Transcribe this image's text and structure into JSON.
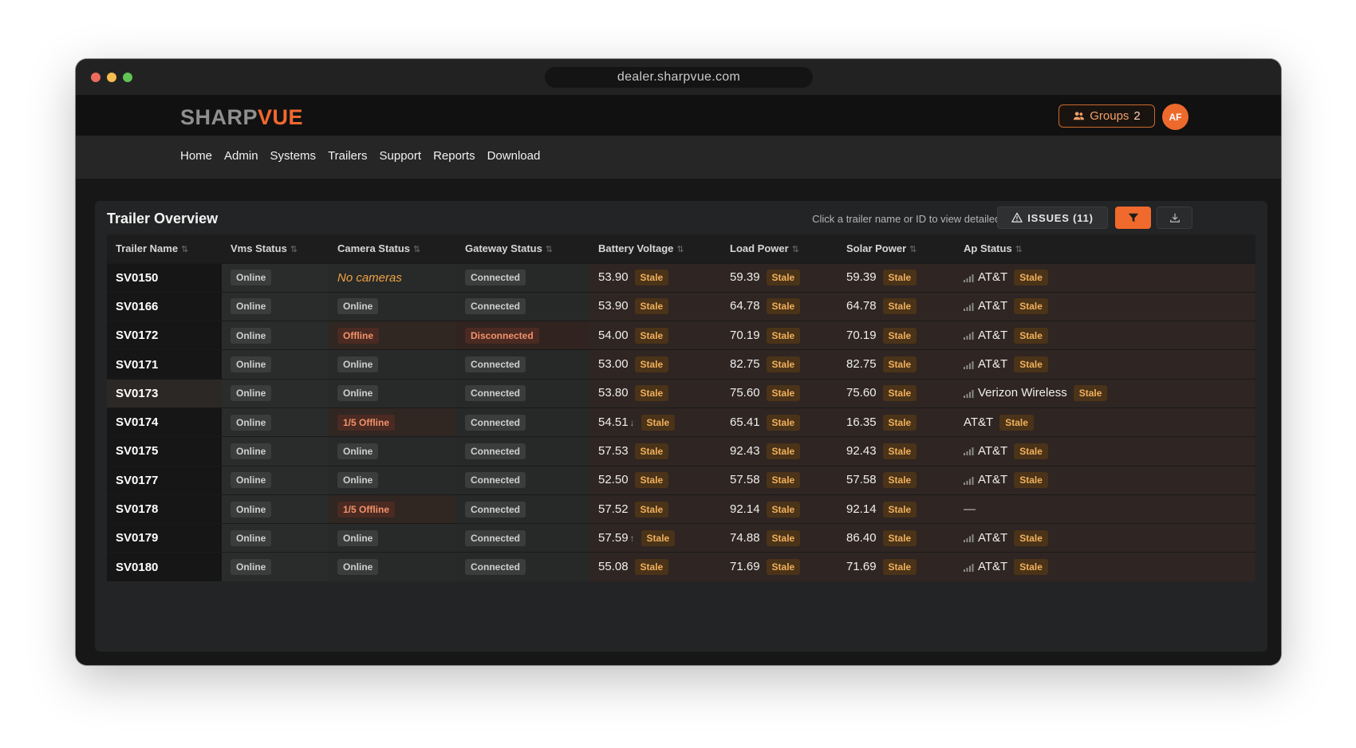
{
  "browser": {
    "url": "dealer.sharpvue.com"
  },
  "header": {
    "logo_a": "SHARP",
    "logo_b": "VUE",
    "groups_label": "Groups",
    "groups_count": "2",
    "avatar_initials": "AF"
  },
  "nav": {
    "items": [
      "Home",
      "Admin",
      "Systems",
      "Trailers",
      "Support",
      "Reports",
      "Download"
    ]
  },
  "card": {
    "title": "Trailer Overview",
    "hint": "Click a trailer name or ID to view detailed diagnostics",
    "issues_label": "ISSUES (11)"
  },
  "table": {
    "columns": [
      "Trailer Name",
      "Vms Status",
      "Camera Status",
      "Gateway Status",
      "Battery Voltage",
      "Load Power",
      "Solar Power",
      "Ap Status"
    ],
    "rows": [
      {
        "name": "SV0150",
        "vms": "Online",
        "camera": "No cameras",
        "camera_type": "none",
        "gateway": "Connected",
        "battery": "53.90",
        "battery_trend": "",
        "load": "59.39",
        "solar": "59.39",
        "ap": "AT&T",
        "ap_signal": true,
        "stale": "Stale"
      },
      {
        "name": "SV0166",
        "vms": "Online",
        "camera": "Online",
        "camera_type": "ok",
        "gateway": "Connected",
        "battery": "53.90",
        "battery_trend": "",
        "load": "64.78",
        "solar": "64.78",
        "ap": "AT&T",
        "ap_signal": true,
        "stale": "Stale"
      },
      {
        "name": "SV0172",
        "vms": "Online",
        "camera": "Offline",
        "camera_type": "bad",
        "gateway": "Disconnected",
        "gateway_bad": true,
        "battery": "54.00",
        "battery_trend": "",
        "load": "70.19",
        "solar": "70.19",
        "ap": "AT&T",
        "ap_signal": true,
        "stale": "Stale"
      },
      {
        "name": "SV0171",
        "vms": "Online",
        "camera": "Online",
        "camera_type": "ok",
        "gateway": "Connected",
        "battery": "53.00",
        "battery_trend": "",
        "load": "82.75",
        "solar": "82.75",
        "ap": "AT&T",
        "ap_signal": true,
        "stale": "Stale"
      },
      {
        "name": "SV0173",
        "vms": "Online",
        "camera": "Online",
        "camera_type": "ok",
        "gateway": "Connected",
        "battery": "53.80",
        "battery_trend": "",
        "load": "75.60",
        "solar": "75.60",
        "ap": "Verizon Wireless",
        "ap_signal": true,
        "stale": "Stale",
        "highlight": true
      },
      {
        "name": "SV0174",
        "vms": "Online",
        "camera": "1/5 Offline",
        "camera_type": "bad",
        "gateway": "Connected",
        "battery": "54.51",
        "battery_trend": "↓",
        "load": "65.41",
        "solar": "16.35",
        "ap": "AT&T",
        "ap_signal": false,
        "stale": "Stale"
      },
      {
        "name": "SV0175",
        "vms": "Online",
        "camera": "Online",
        "camera_type": "ok",
        "gateway": "Connected",
        "battery": "57.53",
        "battery_trend": "",
        "load": "92.43",
        "solar": "92.43",
        "ap": "AT&T",
        "ap_signal": true,
        "stale": "Stale"
      },
      {
        "name": "SV0177",
        "vms": "Online",
        "camera": "Online",
        "camera_type": "ok",
        "gateway": "Connected",
        "battery": "52.50",
        "battery_trend": "",
        "load": "57.58",
        "solar": "57.58",
        "ap": "AT&T",
        "ap_signal": true,
        "stale": "Stale"
      },
      {
        "name": "SV0178",
        "vms": "Online",
        "camera": "1/5 Offline",
        "camera_type": "bad",
        "gateway": "Connected",
        "battery": "57.52",
        "battery_trend": "",
        "load": "92.14",
        "solar": "92.14",
        "ap": "—",
        "ap_signal": false,
        "ap_empty": true,
        "stale": "Stale"
      },
      {
        "name": "SV0179",
        "vms": "Online",
        "camera": "Online",
        "camera_type": "ok",
        "gateway": "Connected",
        "battery": "57.59",
        "battery_trend": "↑",
        "load": "74.88",
        "solar": "86.40",
        "ap": "AT&T",
        "ap_signal": true,
        "stale": "Stale"
      },
      {
        "name": "SV0180",
        "vms": "Online",
        "camera": "Online",
        "camera_type": "ok",
        "gateway": "Connected",
        "battery": "55.08",
        "battery_trend": "",
        "load": "71.69",
        "solar": "71.69",
        "ap": "AT&T",
        "ap_signal": true,
        "stale": "Stale"
      }
    ]
  },
  "icons": {
    "groups": "users-icon",
    "issues": "warning-triangle-icon",
    "filter": "funnel-icon",
    "download": "download-icon",
    "sort": "sort-arrows-icon",
    "signal": "signal-bars-icon"
  },
  "colors": {
    "accent": "#ef6a2c",
    "stale_text": "#f1b05c",
    "stale_bg": "#4a3318"
  }
}
